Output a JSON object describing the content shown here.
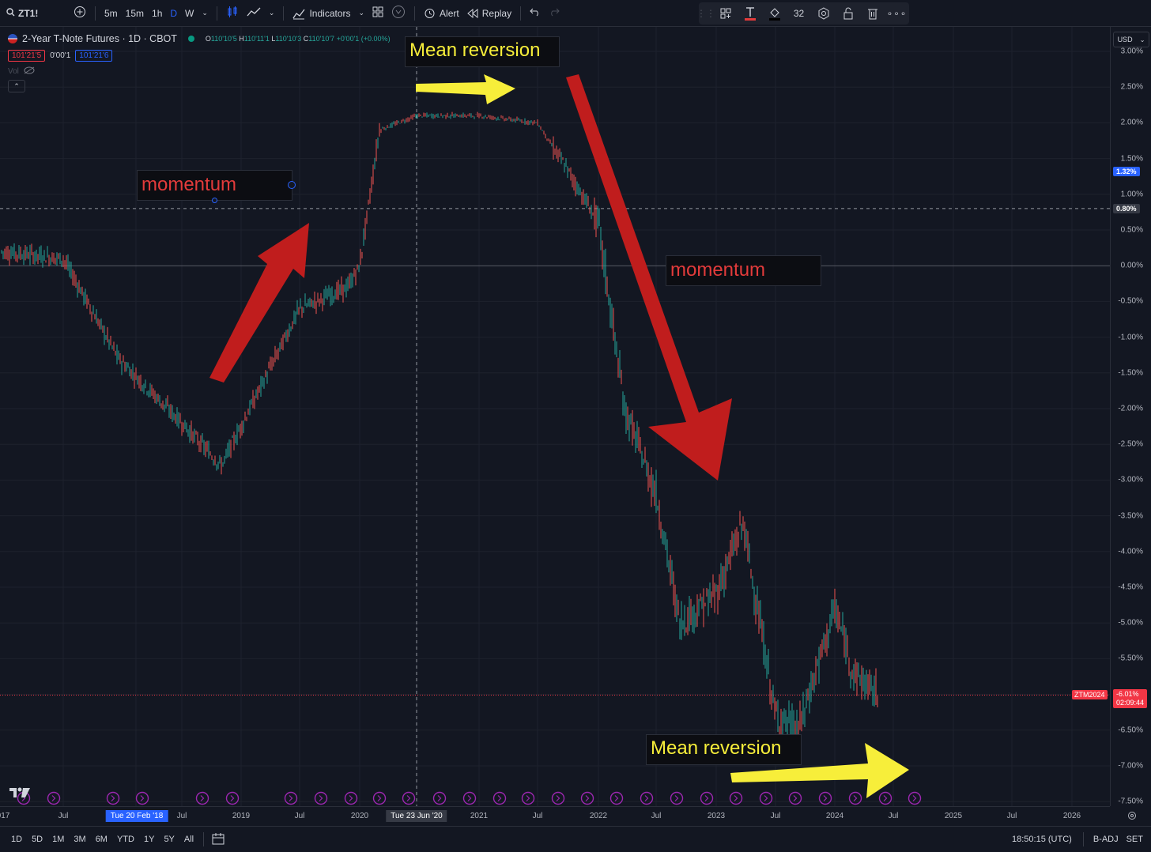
{
  "toolbar": {
    "symbol": "ZT1!",
    "intervals": [
      "5m",
      "15m",
      "1h",
      "D",
      "W"
    ],
    "indicators": "Indicators",
    "alert": "Alert",
    "replay": "Replay",
    "font_size": "32"
  },
  "legend": {
    "title": "2-Year T-Note Futures · 1D · CBOT",
    "o_label": "O",
    "o_val": "110'10'5",
    "h_label": "H",
    "h_val": "110'11'1",
    "l_label": "L",
    "l_val": "110'10'3",
    "c_label": "C",
    "c_val": "110'10'7",
    "change": "+0'00'1 (+0.00%)",
    "sell": "101'21'5",
    "spread": "0'00'1",
    "buy": "101'21'6",
    "vol": "Vol"
  },
  "annotations": {
    "mean_reversion_top": "Mean reversion",
    "momentum_left": "momentum",
    "momentum_right": "momentum",
    "mean_reversion_bottom": "Mean reversion"
  },
  "price_axis": {
    "currency": "USD",
    "ticks": [
      "3.00%",
      "2.50%",
      "2.00%",
      "1.50%",
      "1.00%",
      "0.50%",
      "0.00%",
      "-0.50%",
      "-1.00%",
      "-1.50%",
      "-2.00%",
      "-2.50%",
      "-3.00%",
      "-3.50%",
      "-4.00%",
      "-4.50%",
      "-5.00%",
      "-5.50%",
      "-6.00%",
      "-6.50%",
      "-7.00%",
      "-7.50%"
    ],
    "tick_values": [
      3.0,
      2.5,
      2.0,
      1.5,
      1.0,
      0.5,
      0.0,
      -0.5,
      -1.0,
      -1.5,
      -2.0,
      -2.5,
      -3.0,
      -3.5,
      -4.0,
      -4.5,
      -5.0,
      -5.5,
      -6.0,
      -6.5,
      -7.0,
      -7.5
    ],
    "badge_blue": "1.32%",
    "badge_blue_value": 1.32,
    "badge_crosshair": "0.80%",
    "badge_crosshair_value": 0.8,
    "current_symbol": "ZTM2024",
    "current_value": "-6.01%",
    "countdown": "02:09:44"
  },
  "time_axis": {
    "labels": [
      "017",
      "Jul",
      "Tue 20 Feb '18",
      "Jul",
      "2019",
      "Jul",
      "2020",
      "Tue 23 Jun '20",
      "2021",
      "Jul",
      "2022",
      "Jul",
      "2023",
      "Jul",
      "2024",
      "Jul",
      "2025",
      "Jul",
      "2026"
    ]
  },
  "bottom": {
    "ranges": [
      "1D",
      "5D",
      "1M",
      "3M",
      "6M",
      "YTD",
      "1Y",
      "5Y",
      "All"
    ],
    "clock": "18:50:15 (UTC)",
    "adj": "B-ADJ",
    "session": "SET"
  },
  "colors": {
    "up": "#26a69a",
    "down": "#ef5350",
    "arrow_red": "#c01d1d",
    "arrow_yellow": "#f7ee3a",
    "accent_blue": "#2962ff",
    "current_price_red": "#f23645"
  },
  "chart_data": {
    "type": "line",
    "title": "",
    "xlabel": "",
    "ylabel": "",
    "ylim": [
      -7.5,
      3.0
    ],
    "x": [
      "2017-05",
      "2017-07",
      "2017-10",
      "2018-01",
      "2018-04",
      "2018-07",
      "2018-10",
      "2019-01",
      "2019-04",
      "2019-07",
      "2019-10",
      "2020-01",
      "2020-03",
      "2020-05",
      "2020-08",
      "2020-11",
      "2021-02",
      "2021-05",
      "2021-08",
      "2021-11",
      "2022-01",
      "2022-03",
      "2022-05",
      "2022-07",
      "2022-09",
      "2022-11",
      "2023-01",
      "2023-03",
      "2023-05",
      "2023-07",
      "2023-09",
      "2023-11",
      "2024-01",
      "2024-03",
      "2024-05"
    ],
    "series": [
      {
        "values": [
          0.2,
          0.1,
          0.0,
          -0.5,
          -1.3,
          -2.1,
          -2.6,
          -2.0,
          -1.2,
          -0.4,
          -0.3,
          -0.2,
          1.6,
          2.0,
          2.1,
          2.1,
          2.1,
          2.05,
          2.0,
          1.6,
          0.9,
          -0.6,
          -2.0,
          -2.4,
          -3.1,
          -5.0,
          -5.1,
          -3.9,
          -4.9,
          -6.2,
          -6.3,
          -5.8,
          -5.0,
          -5.8,
          -6.0
        ]
      }
    ]
  }
}
